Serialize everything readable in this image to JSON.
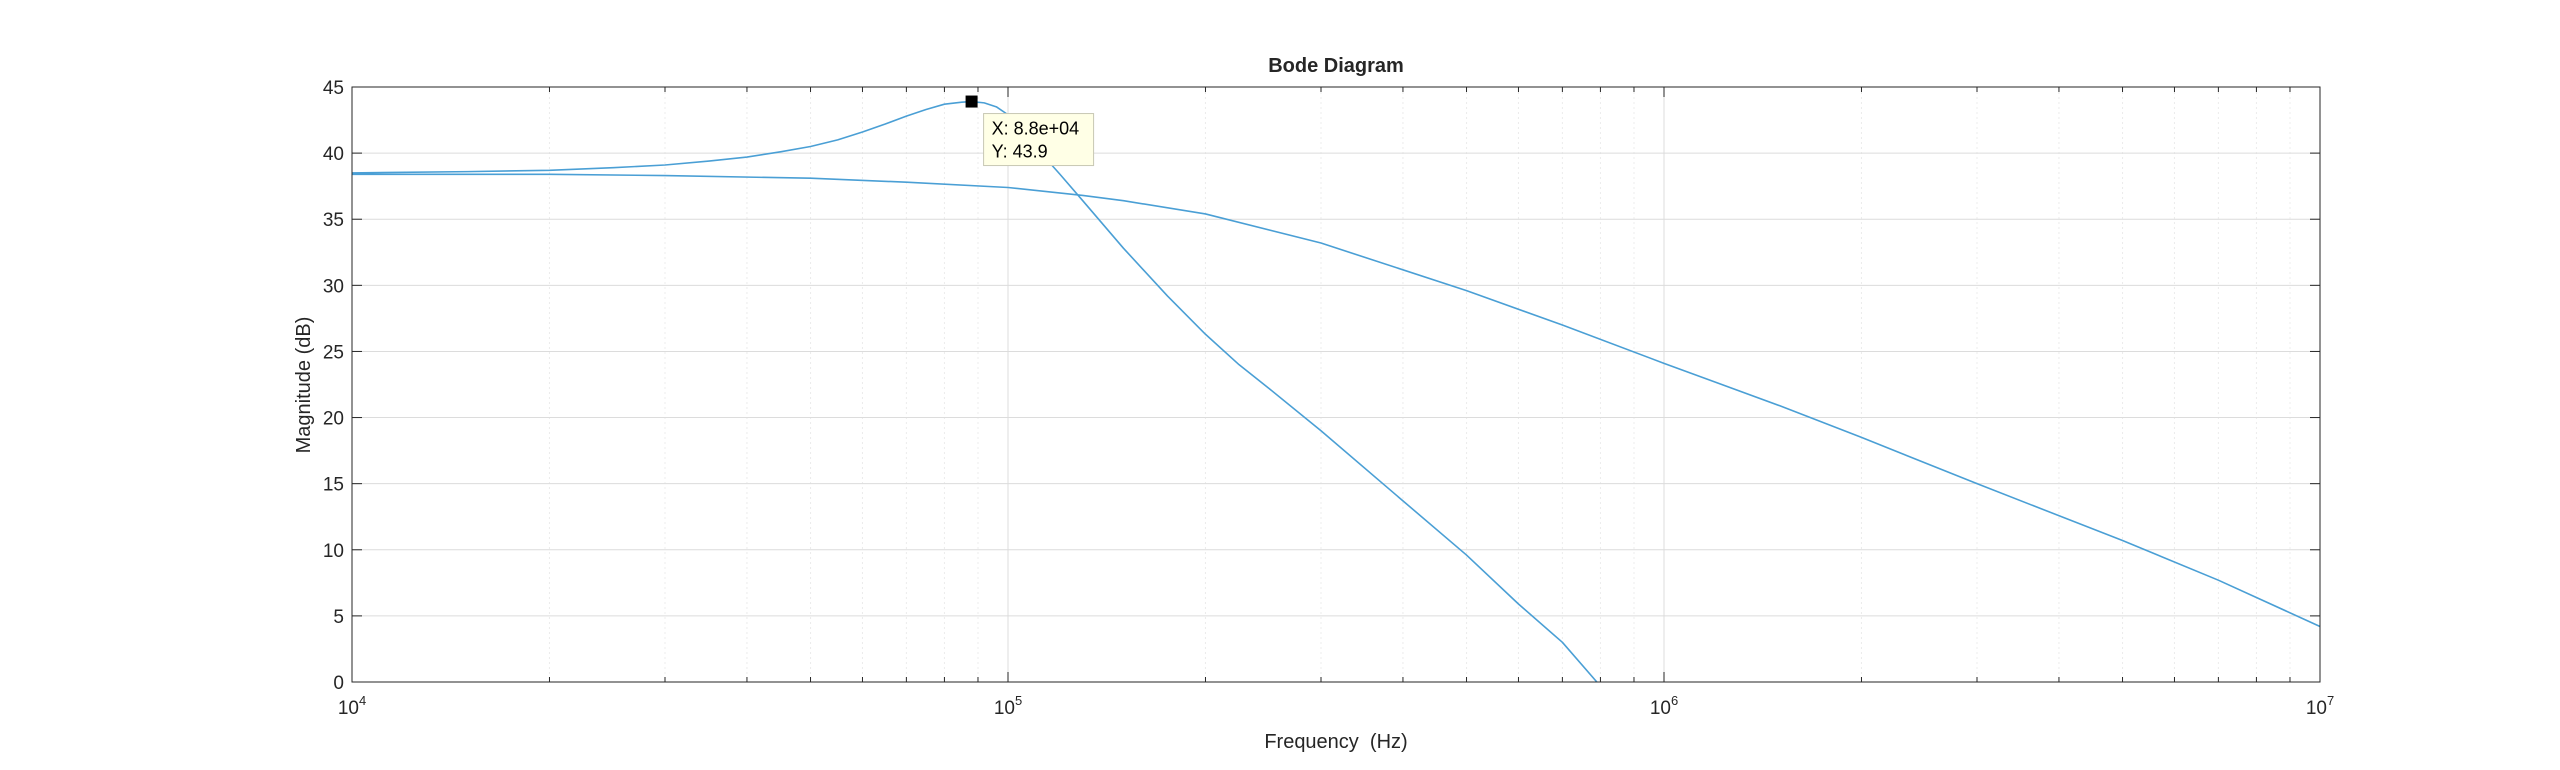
{
  "chart_data": {
    "type": "line",
    "title": "Bode Diagram",
    "xlabel": "Frequency  (Hz)",
    "ylabel": "Magnitude (dB)",
    "xscale": "log",
    "xlim": [
      10000,
      10000000
    ],
    "ylim": [
      0,
      45
    ],
    "grid": true,
    "minor_grid": true,
    "x_ticks": [
      {
        "value": 10000,
        "base": "10",
        "exp": "4"
      },
      {
        "value": 100000,
        "base": "10",
        "exp": "5"
      },
      {
        "value": 1000000,
        "base": "10",
        "exp": "6"
      },
      {
        "value": 10000000,
        "base": "10",
        "exp": "7"
      }
    ],
    "y_ticks": [
      {
        "value": 0,
        "label": "0"
      },
      {
        "value": 5,
        "label": "5"
      },
      {
        "value": 10,
        "label": "10"
      },
      {
        "value": 15,
        "label": "15"
      },
      {
        "value": 20,
        "label": "20"
      },
      {
        "value": 25,
        "label": "25"
      },
      {
        "value": 30,
        "label": "30"
      },
      {
        "value": 35,
        "label": "35"
      },
      {
        "value": 40,
        "label": "40"
      },
      {
        "value": 45,
        "label": "45"
      }
    ],
    "series": [
      {
        "color": "#4a9fd5",
        "x": [
          10000,
          15000,
          20000,
          25000,
          30000,
          35000,
          40000,
          45000,
          50000,
          55000,
          60000,
          65000,
          70000,
          75000,
          80000,
          85000,
          88000,
          92000,
          96000,
          100000,
          105000,
          110000,
          120000,
          130000,
          150000,
          175000,
          200000,
          225000,
          250000,
          300000,
          400000,
          500000,
          600000,
          700000,
          790000
        ],
        "y": [
          38.5,
          38.6,
          38.7,
          38.9,
          39.1,
          39.4,
          39.7,
          40.1,
          40.5,
          41.0,
          41.6,
          42.2,
          42.8,
          43.3,
          43.7,
          43.85,
          43.9,
          43.8,
          43.5,
          42.9,
          41.8,
          40.5,
          38.4,
          36.4,
          32.8,
          29.2,
          26.3,
          24.0,
          22.2,
          19.0,
          13.7,
          9.6,
          5.9,
          3.0,
          0.0
        ]
      },
      {
        "color": "#4a9fd5",
        "x": [
          10000,
          20000,
          30000,
          50000,
          70000,
          100000,
          130000,
          150000,
          200000,
          300000,
          500000,
          700000,
          1000000,
          1500000,
          2000000,
          3000000,
          5000000,
          7000000,
          10000000
        ],
        "y": [
          38.4,
          38.4,
          38.3,
          38.1,
          37.8,
          37.4,
          36.8,
          36.4,
          35.4,
          33.2,
          29.6,
          27.0,
          24.1,
          20.9,
          18.5,
          15.0,
          10.7,
          7.7,
          4.2
        ]
      }
    ],
    "datatip": {
      "x": 88000,
      "y": 43.9,
      "x_label": "X: 8.8e+04",
      "y_label": "Y: 43.9"
    }
  }
}
